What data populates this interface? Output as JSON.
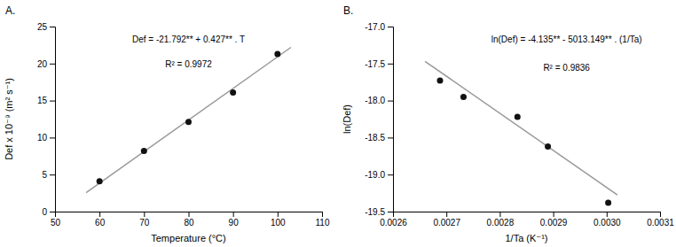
{
  "chart_data": [
    {
      "type": "scatter",
      "title": "A.",
      "xlabel": "Temperature (°C)",
      "ylabel": "Def x 10⁻⁹ (m² s⁻¹)",
      "series": [
        {
          "type": "scatter",
          "color": "#111111",
          "x": [
            60,
            70,
            80,
            90,
            100
          ],
          "values": [
            4.1,
            8.2,
            12.1,
            16.1,
            21.3
          ]
        },
        {
          "type": "line",
          "color": "#999999",
          "x": [
            57,
            103
          ],
          "values": [
            2.547,
            22.189
          ]
        }
      ],
      "annotations": [
        "Def = -21.792** + 0.427** . T",
        "R² = 0.9972"
      ],
      "xlim": [
        50,
        110
      ],
      "ylim": [
        0,
        25
      ],
      "xticks": [
        50,
        60,
        70,
        80,
        90,
        100,
        110
      ],
      "yticks": [
        0,
        5,
        10,
        15,
        20,
        25
      ],
      "grid": false
    },
    {
      "type": "scatter",
      "title": "B.",
      "xlabel": "1/Ta (K⁻¹)",
      "ylabel": "ln(Def)",
      "series": [
        {
          "type": "scatter",
          "color": "#111111",
          "x": [
            0.002688,
            0.002732,
            0.002833,
            0.00289,
            0.003003
          ],
          "values": [
            -17.73,
            -17.95,
            -18.22,
            -18.62,
            -19.38
          ]
        },
        {
          "type": "line",
          "color": "#999999",
          "x": [
            0.00266,
            0.00302
          ],
          "values": [
            -17.46997634,
            -19.27470998
          ]
        }
      ],
      "annotations": [
        "ln(Def) = -4.135** - 5013.149** . (1/Ta)",
        "R² = 0.9836"
      ],
      "xlim": [
        0.0026,
        0.0031
      ],
      "ylim": [
        -19.5,
        -17.0
      ],
      "xticks": [
        0.0026,
        0.0027,
        0.0028,
        0.0029,
        {
          "value": 0.003,
          "label": "0.0030"
        },
        0.0031
      ],
      "yticks": [
        -19.5,
        {
          "value": -19,
          "label": "-19.0"
        },
        -18.5,
        {
          "value": -18,
          "label": "-18.0"
        },
        -17.5,
        {
          "value": -17,
          "label": "-17.0"
        }
      ],
      "grid": false
    }
  ]
}
